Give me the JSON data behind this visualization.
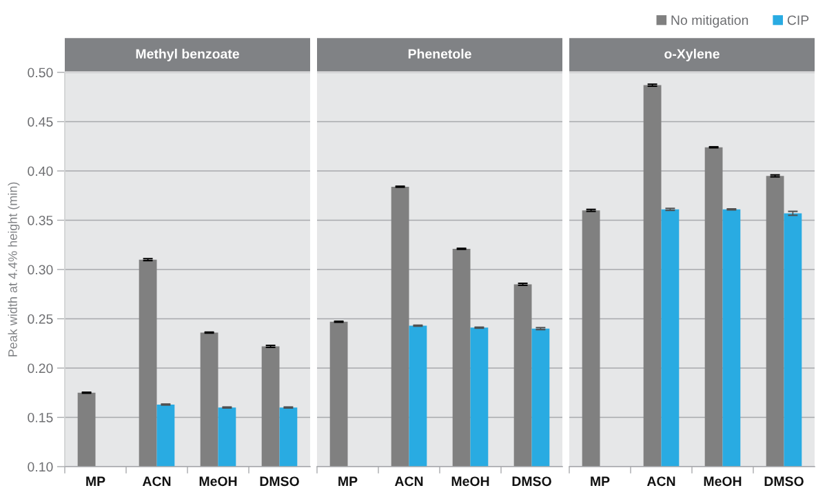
{
  "chart_data": [
    {
      "type": "bar",
      "title": "Methyl benzoate",
      "ylabel": "Peak width at 4.4% height (min)",
      "categories": [
        "MP",
        "ACN",
        "MeOH",
        "DMSO"
      ],
      "series": [
        {
          "color": "#808080",
          "values": [
            0.175,
            0.31,
            0.236,
            0.222
          ],
          "errors": [
            0.0005,
            0.001,
            0.0005,
            0.001
          ]
        },
        {
          "color": "#29abe2",
          "values": [
            null,
            0.163,
            0.16,
            0.16
          ],
          "errors": [
            null,
            0.0005,
            0.0005,
            0.0005
          ]
        }
      ],
      "ylim": [
        0.1,
        0.5
      ],
      "yticks": [
        {
          "value": 0.1,
          "label": "0.10"
        },
        {
          "value": 0.15,
          "label": "0.15"
        },
        {
          "value": 0.2,
          "label": "0.20"
        },
        {
          "value": 0.25,
          "label": "0.25"
        },
        {
          "value": 0.3,
          "label": "0.30"
        },
        {
          "value": 0.35,
          "label": "0.35"
        },
        {
          "value": 0.4,
          "label": "0.40"
        },
        {
          "value": 0.45,
          "label": "0.45"
        },
        {
          "value": 0.5,
          "label": "0.50"
        }
      ],
      "grid": "y"
    },
    {
      "type": "bar",
      "title": "Phenetole",
      "categories": [
        "MP",
        "ACN",
        "MeOH",
        "DMSO"
      ],
      "series": [
        {
          "color": "#808080",
          "values": [
            0.247,
            0.384,
            0.321,
            0.285
          ],
          "errors": [
            0.0005,
            0.0005,
            0.0005,
            0.001
          ]
        },
        {
          "color": "#29abe2",
          "values": [
            null,
            0.243,
            0.241,
            0.24
          ],
          "errors": [
            null,
            0.0005,
            0.0005,
            0.001
          ]
        }
      ],
      "ylim": [
        0.1,
        0.5
      ],
      "yticks": [
        0.1,
        0.15,
        0.2,
        0.25,
        0.3,
        0.35,
        0.4,
        0.45,
        0.5
      ],
      "grid": "y",
      "tick_labels": "x"
    },
    {
      "type": "bar",
      "title": "o-Xylene",
      "categories": [
        "MP",
        "ACN",
        "MeOH",
        "DMSO"
      ],
      "series": [
        {
          "name": "No mitigation",
          "color": "#808080",
          "values": [
            0.36,
            0.487,
            0.424,
            0.395
          ],
          "errors": [
            0.001,
            0.001,
            0.0005,
            0.001
          ]
        },
        {
          "name": "CIP",
          "color": "#29abe2",
          "values": [
            null,
            0.361,
            0.361,
            0.357
          ],
          "errors": [
            null,
            0.001,
            0.0005,
            0.002
          ]
        }
      ],
      "ylim": [
        0.1,
        0.5
      ],
      "yticks": [
        0.1,
        0.15,
        0.2,
        0.25,
        0.3,
        0.35,
        0.4,
        0.45,
        0.5
      ],
      "grid": "y",
      "tick_labels": "x",
      "legend": "top right"
    }
  ]
}
